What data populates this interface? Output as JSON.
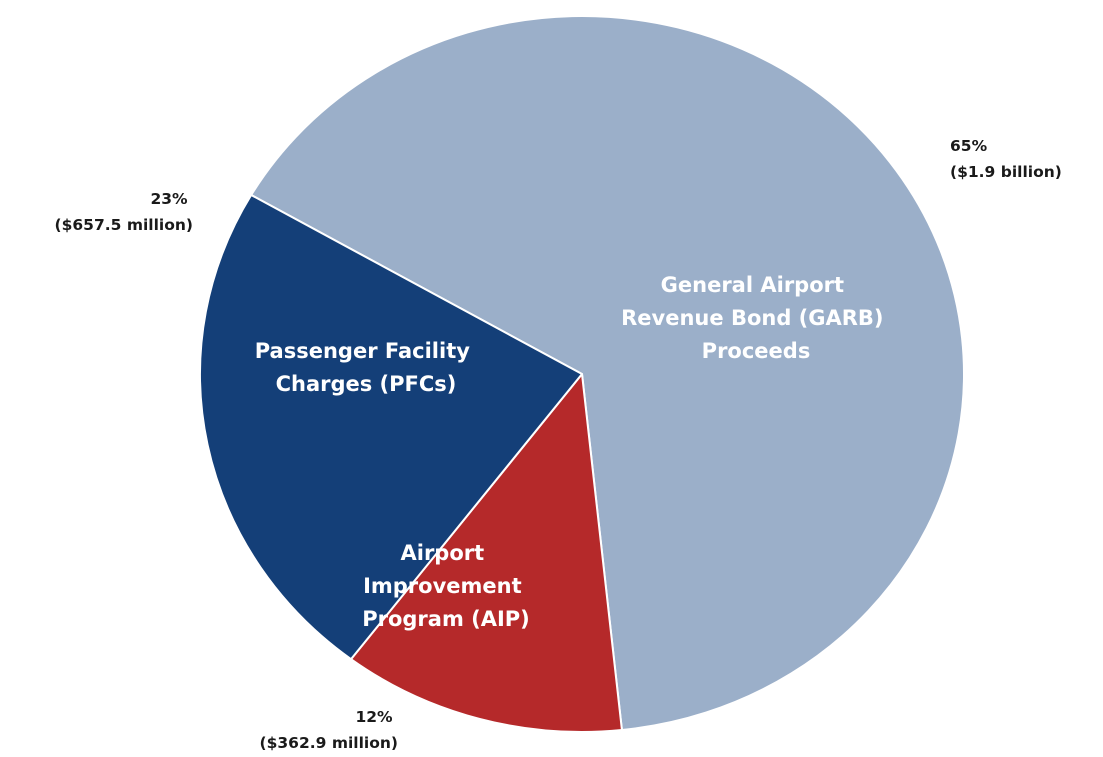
{
  "chart_data": {
    "type": "pie",
    "slices": [
      {
        "name": "General Airport Revenue Bond (GARB) Proceeds",
        "label_lines": [
          "General Airport",
          "Revenue Bond (GARB)",
          "Proceeds"
        ],
        "value": 65,
        "amount": "$1.9 billion",
        "outer_lines": [
          "65%",
          "($1.9 billion)"
        ],
        "color": "#9bafc9"
      },
      {
        "name": "Airport Improvement Program (AIP)",
        "label_lines": [
          "Airport",
          "Improvement",
          "Program (AIP)"
        ],
        "value": 12,
        "amount": "$362.9 million",
        "outer_lines": [
          "12%",
          "($362.9 million)"
        ],
        "color": "#b5292a"
      },
      {
        "name": "Passenger Facility Charges (PFCs)",
        "label_lines": [
          "Passenger Facility",
          "Charges (PFCs)"
        ],
        "value": 23,
        "amount": "$657.5 million",
        "outer_lines": [
          "23%",
          "($657.5 million)"
        ],
        "color": "#143f78"
      }
    ],
    "title": "",
    "legend": "none"
  }
}
